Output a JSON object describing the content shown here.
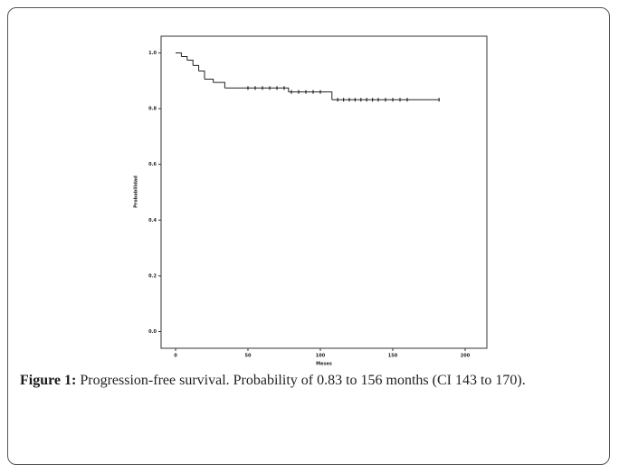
{
  "chart_data": {
    "type": "step",
    "xlabel": "Meses",
    "ylabel": "Probabilidad",
    "x": [
      0,
      4,
      8,
      12,
      16,
      20,
      26,
      34,
      78,
      108,
      182
    ],
    "values": [
      1.0,
      0.987,
      0.974,
      0.955,
      0.935,
      0.906,
      0.894,
      0.874,
      0.86,
      0.832,
      0.832
    ],
    "censored": {
      "x": [
        50,
        55,
        60,
        65,
        70,
        75,
        80,
        85,
        90,
        95,
        100,
        112,
        116,
        120,
        124,
        128,
        132,
        136,
        140,
        145,
        150,
        155,
        160,
        182
      ],
      "values": [
        0.874,
        0.874,
        0.874,
        0.874,
        0.874,
        0.874,
        0.86,
        0.86,
        0.86,
        0.86,
        0.86,
        0.832,
        0.832,
        0.832,
        0.832,
        0.832,
        0.832,
        0.832,
        0.832,
        0.832,
        0.832,
        0.832,
        0.832,
        0.832
      ]
    },
    "color": "#222222",
    "xlim": [
      -10,
      215
    ],
    "ylim": [
      -0.06,
      1.06
    ],
    "xticks": [
      0,
      50,
      100,
      150,
      200
    ],
    "yticks": [
      {
        "value": 0,
        "label": "0.0"
      },
      0.2,
      0.4,
      0.6,
      0.8,
      {
        "value": 1,
        "label": "1.0"
      }
    ]
  },
  "caption": {
    "label": "Figure 1:",
    "text": "Progression-free survival. Probability of 0.83 to 156 months (CI 143 to 170)."
  }
}
